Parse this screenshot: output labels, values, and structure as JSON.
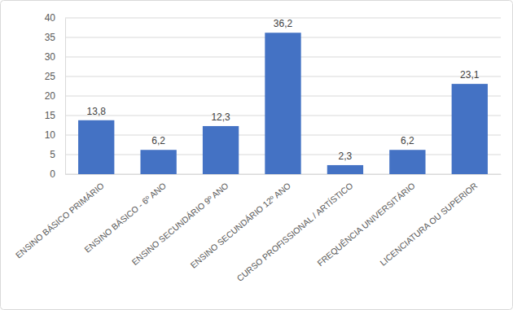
{
  "chart_data": {
    "type": "bar",
    "categories": [
      "ENSINO BÁSICO PRIMÁRIO",
      "ENSINO BÁSICO - 6º ANO",
      "ENSINO SECUNDÁRIO 9º ANO",
      "ENSINO SECUNDÁRIO 12º ANO",
      "CURSO PROFISSIONAL / ARTÍSTICO",
      "FREQUÊNCIA UNIVERSITÁRIO",
      "LICENCIATURA OU SUPERIOR"
    ],
    "values": [
      13.8,
      6.2,
      12.3,
      36.2,
      2.3,
      6.2,
      23.1
    ],
    "value_labels": [
      "13,8",
      "6,2",
      "12,3",
      "36,2",
      "2,3",
      "6,2",
      "23,1"
    ],
    "color": "#4472c4",
    "ylim": [
      0,
      40
    ],
    "yticks": [
      0,
      5,
      10,
      15,
      20,
      25,
      30,
      35,
      40
    ],
    "grid": true,
    "data_labels": true
  }
}
